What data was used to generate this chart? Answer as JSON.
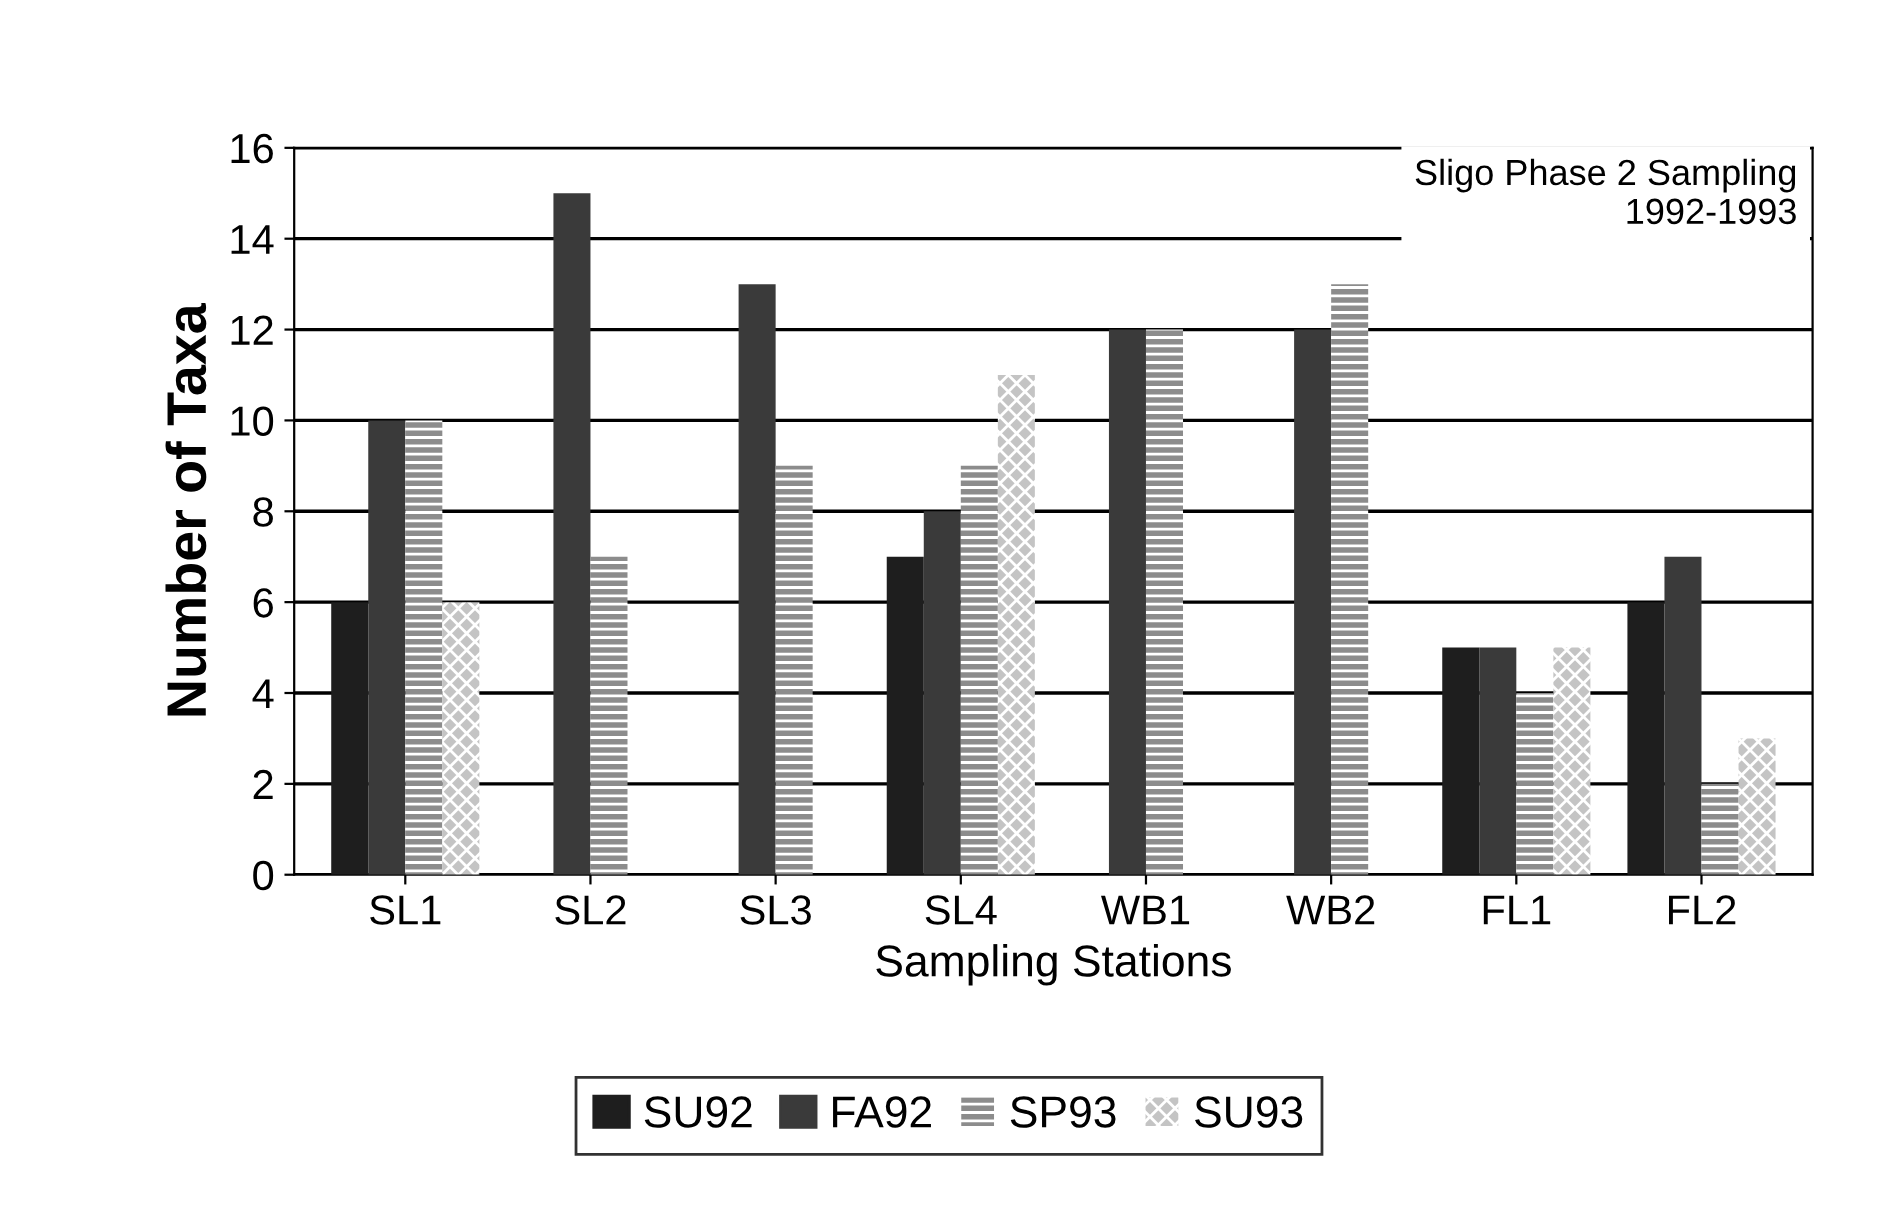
{
  "chart_data": {
    "type": "bar",
    "xlabel": "Sampling Stations",
    "ylabel": "Number of Taxa",
    "annotations": [
      "Sligo Phase 2 Sampling\n1992-1993"
    ],
    "categories": [
      "SL1",
      "SL2",
      "SL3",
      "SL4",
      "WB1",
      "WB2",
      "FL1",
      "FL2"
    ],
    "series": [
      {
        "name": "SU92",
        "color": "#1e1e1e",
        "values": [
          6,
          null,
          null,
          7,
          null,
          null,
          5,
          6
        ]
      },
      {
        "name": "FA92",
        "color": "#3a3a3a",
        "values": [
          10,
          15,
          13,
          8,
          12,
          12,
          5,
          7
        ]
      },
      {
        "name": "SP93",
        "color": "#8c8c8c",
        "values": [
          10,
          7,
          9,
          9,
          12,
          13,
          4,
          2
        ]
      },
      {
        "name": "SU93",
        "color": "#c4c4c4",
        "values": [
          6,
          null,
          null,
          11,
          null,
          null,
          5,
          3
        ]
      }
    ],
    "ylim": [
      0,
      16
    ],
    "yticks": [
      0,
      2,
      4,
      6,
      8,
      10,
      12,
      14,
      16
    ],
    "grid": "y",
    "legend": "bottom"
  }
}
